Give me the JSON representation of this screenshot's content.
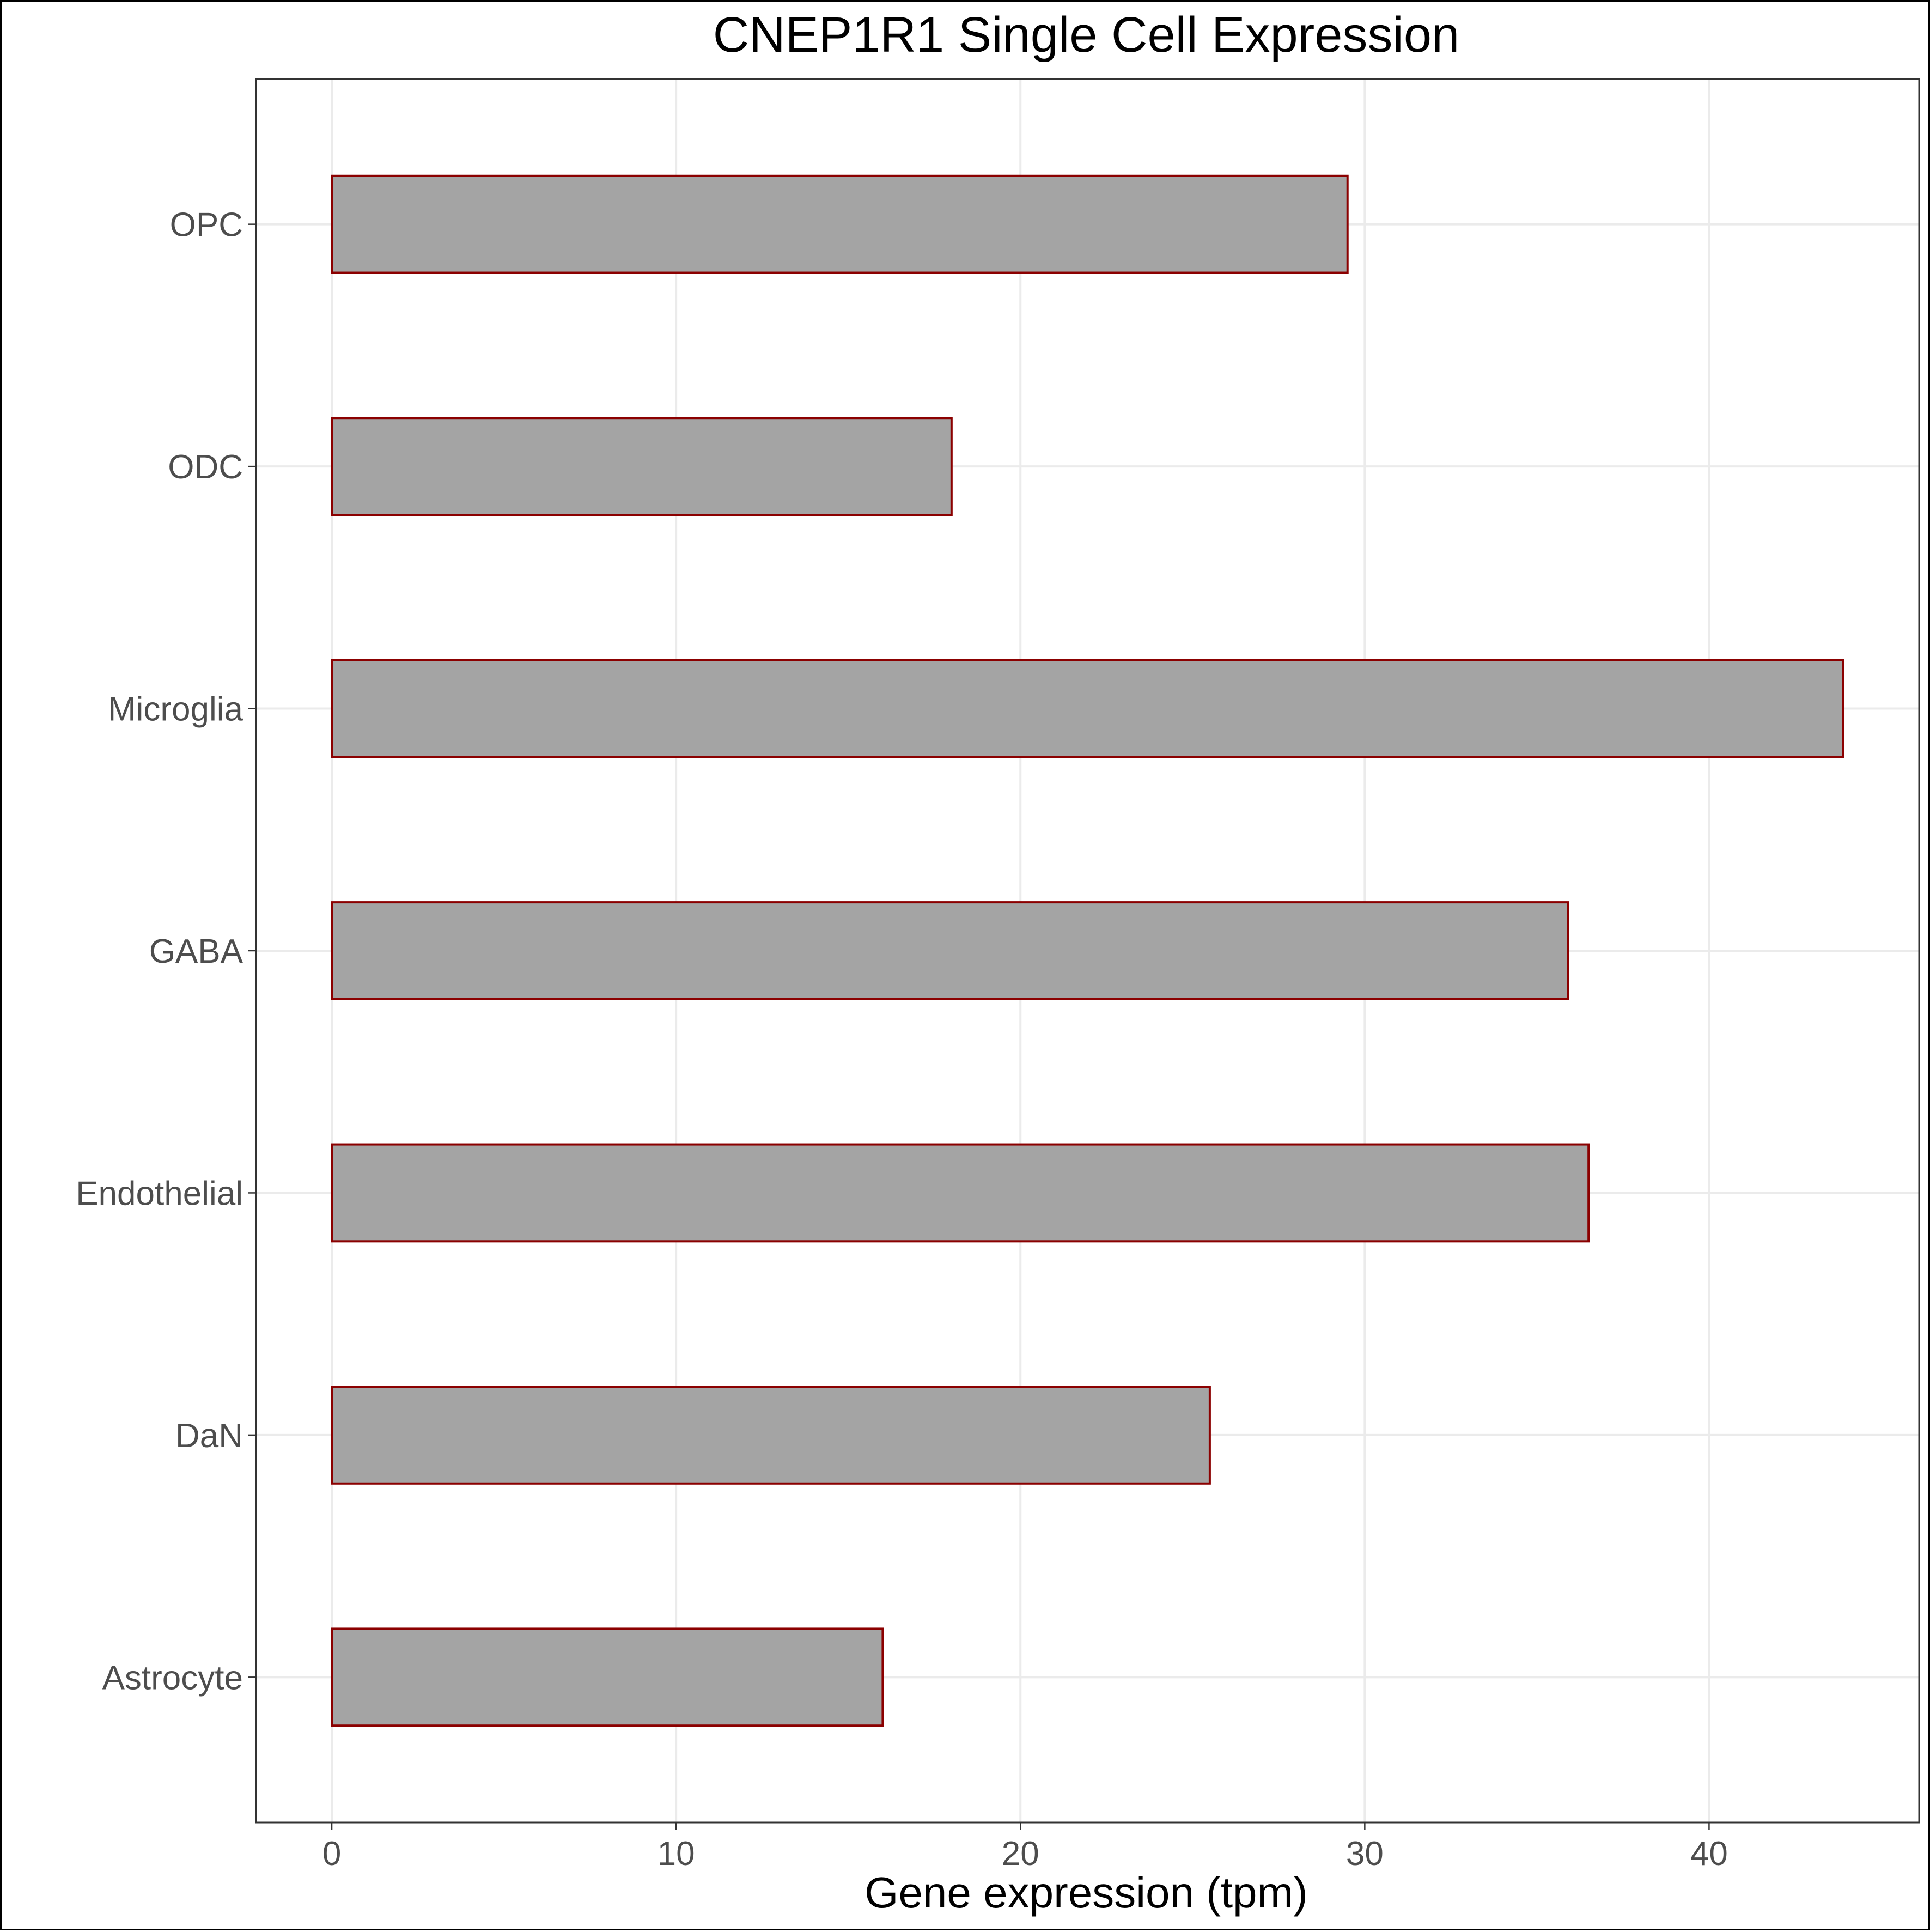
{
  "chart_data": {
    "type": "bar",
    "orientation": "horizontal",
    "title": "CNEP1R1 Single Cell Expression",
    "xlabel": "Gene expression (tpm)",
    "ylabel": "",
    "categories": [
      "Astrocyte",
      "DaN",
      "Endothelial",
      "GABA",
      "Microglia",
      "ODC",
      "OPC"
    ],
    "values": [
      16.0,
      25.5,
      36.5,
      35.9,
      43.9,
      18.0,
      29.5
    ],
    "xlim": [
      -2.2,
      46.1
    ],
    "xticks": [
      0,
      10,
      20,
      30,
      40
    ],
    "grid": true,
    "legend": "none",
    "colors": {
      "bar_fill": "#a4a4a4",
      "bar_outline": "#8b0000",
      "grid": "#ebebeb",
      "tick_label": "#4d4d4d"
    }
  }
}
